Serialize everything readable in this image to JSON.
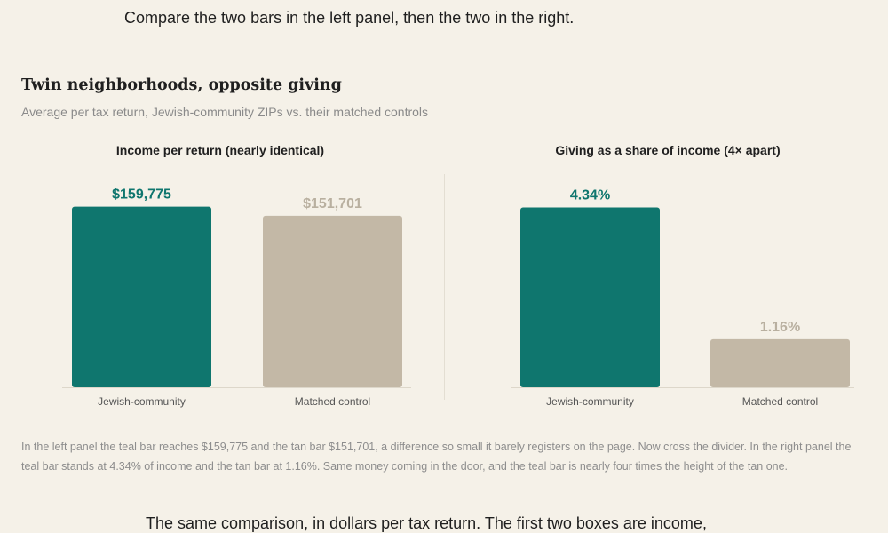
{
  "lead_text": "Compare the two bars in the left panel, then the two in the right.",
  "figure": {
    "title": "Twin neighborhoods, opposite giving",
    "subtitle": "Average per tax return, Jewish-community ZIPs vs. their matched controls"
  },
  "chart_data": [
    {
      "type": "bar",
      "title": "Income per return (nearly identical)",
      "categories": [
        "Jewish-community",
        "Matched control"
      ],
      "values": [
        159775,
        151701
      ],
      "value_labels": [
        "$159,775",
        "$151,701"
      ],
      "ylim": [
        0,
        165000
      ],
      "colors": [
        "#0f766e",
        "#c3b8a6"
      ],
      "label_colors": [
        "#0f766e",
        "#b9b0a0"
      ],
      "grid": false,
      "xlabel": "",
      "ylabel": ""
    },
    {
      "type": "bar",
      "title": "Giving as a share of income (4× apart)",
      "categories": [
        "Jewish-community",
        "Matched control"
      ],
      "values": [
        4.34,
        1.16
      ],
      "value_labels": [
        "4.34%",
        "1.16%"
      ],
      "ylim": [
        0,
        4.5
      ],
      "colors": [
        "#0f766e",
        "#c3b8a6"
      ],
      "label_colors": [
        "#0f766e",
        "#b9b0a0"
      ],
      "grid": false,
      "xlabel": "",
      "ylabel": ""
    }
  ],
  "caption": "In the left panel the teal bar reaches $159,775 and the tan bar $151,701, a difference so small it barely registers on the page. Now cross the divider. In the right panel the teal bar stands at 4.34% of income and the tan bar at 1.16%. Same money coming in the door, and the teal bar is nearly four times the height of the tan one.",
  "next_text": "The same comparison, in dollars per tax return. The first two boxes are income,"
}
